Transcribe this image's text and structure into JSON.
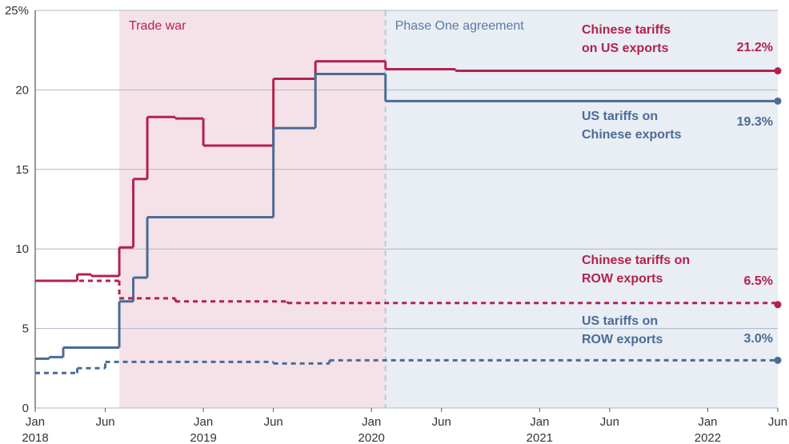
{
  "chart_data": {
    "type": "step-line",
    "xlim": [
      "2018-01",
      "2022-06"
    ],
    "xticks": [
      {
        "value": "2018-01",
        "label": "Jan"
      },
      {
        "value": "2018-06",
        "label": "Jun"
      },
      {
        "value": "2019-01",
        "label": "Jan"
      },
      {
        "value": "2019-06",
        "label": "Jun"
      },
      {
        "value": "2020-01",
        "label": "Jan"
      },
      {
        "value": "2020-06",
        "label": "Jun"
      },
      {
        "value": "2021-01",
        "label": "Jan"
      },
      {
        "value": "2021-06",
        "label": "Jun"
      },
      {
        "value": "2022-01",
        "label": "Jan"
      },
      {
        "value": "2022-06",
        "label": "Jun"
      }
    ],
    "xyears": [
      {
        "value": "2018-01",
        "label": "2018"
      },
      {
        "value": "2019-01",
        "label": "2019"
      },
      {
        "value": "2020-01",
        "label": "2020"
      },
      {
        "value": "2021-01",
        "label": "2021"
      },
      {
        "value": "2022-01",
        "label": "2022"
      }
    ],
    "ylim": [
      0,
      25
    ],
    "yticks": [
      0,
      5,
      10,
      15,
      20,
      {
        "value": 25,
        "label": "25%"
      }
    ],
    "grid": true,
    "regions": [
      {
        "label": "Trade war",
        "start": "2018-07",
        "end": "2020-02",
        "color": "#f5e2e8"
      },
      {
        "label": "Phase One agreement",
        "start": "2020-02",
        "end": "2022-06",
        "color": "#e9edf4"
      }
    ],
    "series": [
      {
        "name": "Chinese tariffs\non US exports",
        "color": "#b3224c",
        "dashed": false,
        "x": [
          "2018-01",
          "2018-04",
          "2018-05",
          "2018-07",
          "2018-08",
          "2018-09",
          "2018-11",
          "2019-01",
          "2019-06",
          "2019-09",
          "2020-02",
          "2020-07",
          "2022-06"
        ],
        "values": [
          8.0,
          8.4,
          8.3,
          10.1,
          14.4,
          18.3,
          18.2,
          16.5,
          20.7,
          21.8,
          21.3,
          21.2,
          21.2
        ],
        "value_labels": [
          null,
          null,
          null,
          null,
          null,
          null,
          null,
          null,
          null,
          null,
          null,
          null,
          "21.2%"
        ]
      },
      {
        "name": "US tariffs on\nChinese exports",
        "color": "#4a6c96",
        "dashed": false,
        "x": [
          "2018-01",
          "2018-02",
          "2018-03",
          "2018-07",
          "2018-08",
          "2018-09",
          "2019-06",
          "2019-09",
          "2020-02",
          "2022-06"
        ],
        "values": [
          3.1,
          3.2,
          3.8,
          6.7,
          8.2,
          12.0,
          17.6,
          21.0,
          19.3,
          19.3
        ],
        "value_labels": [
          null,
          null,
          null,
          null,
          null,
          null,
          null,
          null,
          null,
          "19.3%"
        ]
      },
      {
        "name": "Chinese tariffs on\nROW exports",
        "color": "#b3224c",
        "dashed": true,
        "x": [
          "2018-01",
          "2018-07",
          "2018-11",
          "2019-07",
          "2022-06"
        ],
        "values": [
          8.0,
          6.9,
          6.7,
          6.6,
          6.5
        ],
        "value_labels": [
          null,
          null,
          null,
          null,
          "6.5%"
        ]
      },
      {
        "name": "US tariffs on\nROW exports",
        "color": "#4a6c96",
        "dashed": true,
        "x": [
          "2018-01",
          "2018-04",
          "2018-06",
          "2019-06",
          "2019-10",
          "2022-06"
        ],
        "values": [
          2.2,
          2.5,
          2.9,
          2.8,
          3.0,
          3.0
        ],
        "value_labels": [
          null,
          null,
          null,
          null,
          null,
          "3.0%"
        ]
      }
    ]
  }
}
